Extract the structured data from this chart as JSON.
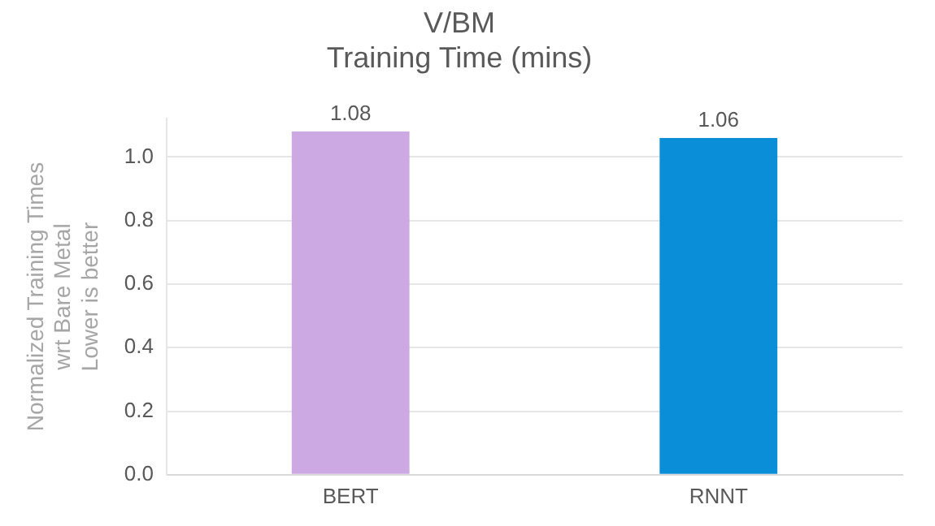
{
  "chart_data": {
    "type": "bar",
    "title": "V/BM",
    "subtitle": "Training Time (mins)",
    "ylabel": "Normalized Training Times\nwrt Bare Metal\nLower is better",
    "categories": [
      "BERT",
      "RNNT"
    ],
    "values": [
      1.08,
      1.06
    ],
    "colors": [
      "#cda9e4",
      "#0b8ed8"
    ],
    "ylim": [
      0,
      1.12
    ],
    "yticks": [
      {
        "value": 0,
        "label": "0.0"
      },
      {
        "value": 0.2,
        "label": "0.2"
      },
      {
        "value": 0.4,
        "label": "0.4"
      },
      {
        "value": 0.6,
        "label": "0.6"
      },
      {
        "value": 0.8,
        "label": "0.8"
      },
      {
        "value": 1,
        "label": "1.0"
      }
    ],
    "grid": "y",
    "data_labels": true,
    "legend": false
  }
}
